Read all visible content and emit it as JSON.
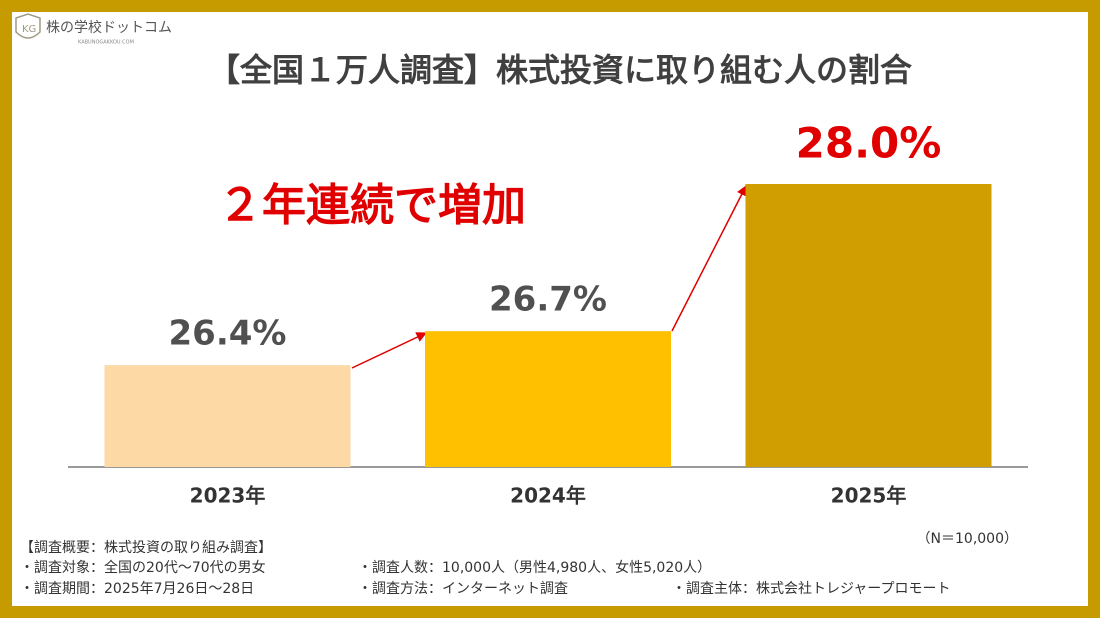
{
  "chart_data": {
    "type": "bar",
    "logo": {
      "name": "株の学校ドットコム",
      "url": "KABUNOGAKKOU.COM"
    },
    "title": "【全国１万人調査】株式投資に取り組む人の割合",
    "annotation": "２年連続で増加",
    "categories": [
      "2023年",
      "2024年",
      "2025年"
    ],
    "values": [
      26.4,
      26.7,
      28.0
    ],
    "value_labels": [
      "26.4%",
      "26.7%",
      "28.0%"
    ],
    "colors": [
      "#fdd9a6",
      "#ffc000",
      "#d09e00"
    ],
    "value_label_colors": [
      "#505050",
      "#505050",
      "#e00000"
    ],
    "ylim": [
      25.5,
      28.0
    ],
    "note": "（N＝10,000）",
    "footnotes": {
      "heading": "【調査概要：株式投資の取り組み調査】",
      "target": "・調査対象：全国の20代～70代の男女",
      "size": "・調査人数：10,000人（男性4,980人、女性5,020人）",
      "period": "・調査期間：2025年7月26日～28日",
      "method": "・調査方法：インターネット調査",
      "organizer": "・調査主体：株式会社トレジャープロモート"
    }
  }
}
